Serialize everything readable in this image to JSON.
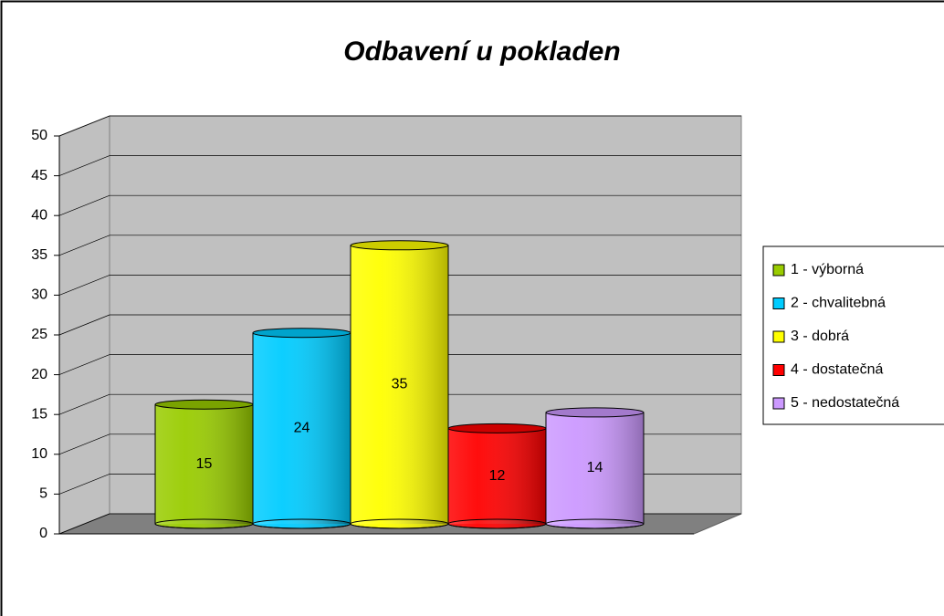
{
  "chart_data": {
    "type": "bar3d",
    "title": "Odbavení u pokladen",
    "series": [
      {
        "name": "1 - výborná",
        "color": "#99cc00",
        "values": [
          15
        ]
      },
      {
        "name": "2 - chvalitebná",
        "color": "#00ccff",
        "values": [
          24
        ]
      },
      {
        "name": "3 - dobrá",
        "color": "#ffff00",
        "values": [
          35
        ]
      },
      {
        "name": "4 - dostatečná",
        "color": "#ff0000",
        "values": [
          12
        ]
      },
      {
        "name": "5 - nedostatečná",
        "color": "#cc99ff",
        "values": [
          14
        ]
      }
    ],
    "ylim": [
      0,
      50
    ],
    "yticks": [
      0,
      5,
      10,
      15,
      20,
      25,
      30,
      35,
      40,
      45,
      50
    ],
    "grid": true,
    "legend": "right"
  }
}
